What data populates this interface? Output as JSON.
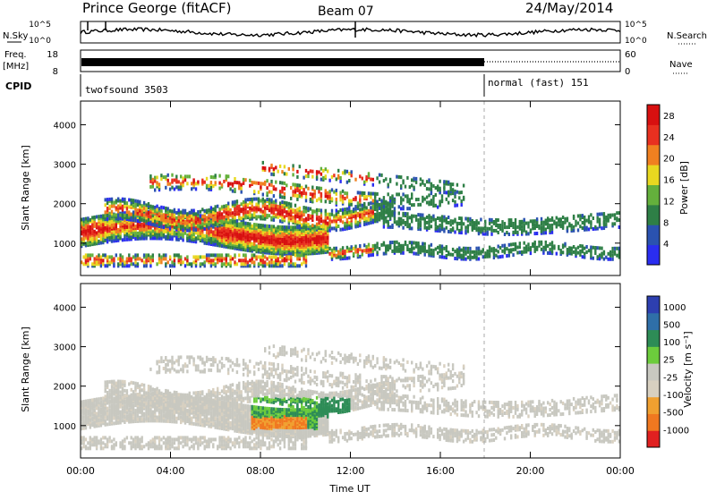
{
  "header": {
    "title": "Prince George (fitACF)",
    "beam": "Beam 07",
    "date": "24/May/2014"
  },
  "aux": {
    "nsky_label": "N.Sky",
    "nsearch_label": "N.Search",
    "freq_label_top": "Freq.",
    "freq_label_unit": "[MHz]",
    "nave_label": "Nave",
    "cpid_label": "CPID",
    "noise_ticks_left": [
      "10^5",
      "10^0"
    ],
    "noise_ticks_right": [
      "10^5",
      "10^0"
    ],
    "freq_ticks_left": [
      "18",
      "8"
    ],
    "freq_ticks_right": [
      "60",
      "0"
    ],
    "cpid_modes": [
      {
        "label": "twofsound 3503",
        "start_hour": 0
      },
      {
        "label": "normal (fast) 151",
        "start_hour": 18
      }
    ]
  },
  "chart_data": [
    {
      "type": "heatmap",
      "name": "power",
      "ylabel": "Slant Range [km]",
      "xlabel": "Time UT",
      "x_ticks": [
        "00:00",
        "04:00",
        "08:00",
        "12:00",
        "16:00",
        "20:00",
        "00:00"
      ],
      "xlim_hours": [
        0,
        24
      ],
      "y_ticks": [
        1000,
        2000,
        3000,
        4000
      ],
      "ylim_km": [
        180,
        4600
      ],
      "colorbar_label": "Power [dB]",
      "colorbar_ticks": [
        "4",
        "8",
        "12",
        "16",
        "20",
        "24",
        "28"
      ],
      "colorbar_colors": [
        "#2a2df0",
        "#2a52b0",
        "#2e7f46",
        "#64b03c",
        "#e8d820",
        "#f08020",
        "#e83020",
        "#d81010"
      ],
      "colorbar_range": [
        0,
        30
      ]
    },
    {
      "type": "heatmap",
      "name": "velocity",
      "ylabel": "Slant Range [km]",
      "xlabel": "Time UT",
      "x_ticks": [
        "00:00",
        "04:00",
        "08:00",
        "12:00",
        "16:00",
        "20:00",
        "00:00"
      ],
      "xlim_hours": [
        0,
        24
      ],
      "y_ticks": [
        1000,
        2000,
        3000,
        4000
      ],
      "ylim_km": [
        180,
        4600
      ],
      "colorbar_label": "Velocity [m s⁻¹]",
      "colorbar_ticks": [
        "1000",
        "500",
        "100",
        "25",
        "-25",
        "-100",
        "-500",
        "-1000"
      ],
      "colorbar_colors": [
        "#2d3fb0",
        "#2f6fa8",
        "#2d8c56",
        "#6ccc3c",
        "#c8c8c0",
        "#d8d0c0",
        "#f0a030",
        "#f07820",
        "#e02020"
      ]
    }
  ],
  "x_axis_title": "Time UT"
}
